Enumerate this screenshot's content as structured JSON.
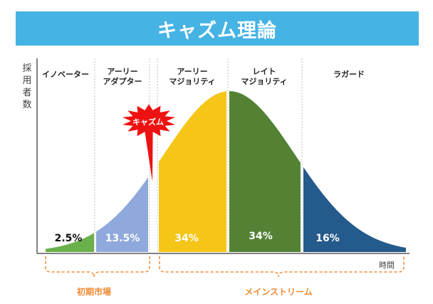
{
  "title": "キャズム理論",
  "y_axis_label": "採用者数",
  "x_axis_label": "時間",
  "chasm_label": "キャズム",
  "segments": [
    {
      "label_lines": [
        "イノベーター"
      ],
      "percent": "2.5%",
      "color": "#6ab04c"
    },
    {
      "label_lines": [
        "アーリー",
        "アダプター"
      ],
      "percent": "13.5%",
      "color": "#8fa9dc"
    },
    {
      "label_lines": [
        "アーリー",
        "マジョリティ"
      ],
      "percent": "34%",
      "color": "#f5c518"
    },
    {
      "label_lines": [
        "レイト",
        "マジョリティ"
      ],
      "percent": "34%",
      "color": "#548235"
    },
    {
      "label_lines": [
        "ラガード"
      ],
      "percent": "16%",
      "color": "#245a8c"
    }
  ],
  "markets": [
    {
      "label": "初期市場"
    },
    {
      "label": "メインストリーム"
    }
  ],
  "colors": {
    "banner": "#45b3e4",
    "chasm": "#ee1111",
    "bracket": "#f08a32",
    "market_text": "#f08a32"
  }
}
